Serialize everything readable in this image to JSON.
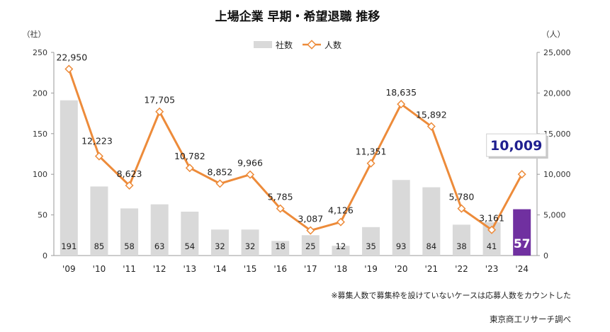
{
  "chart_data": {
    "type": "bar+line",
    "title": "上場企業 早期・希望退職 推移",
    "categories": [
      "'09",
      "'10",
      "'11",
      "'12",
      "'13",
      "'14",
      "'15",
      "'16",
      "'17",
      "'18",
      "'19",
      "'20",
      "'21",
      "'22",
      "'23",
      "'24"
    ],
    "y_left": {
      "unit": "（社）",
      "ylim": [
        0,
        250
      ],
      "ticks": [
        "0",
        "50",
        "100",
        "150",
        "200",
        "250"
      ]
    },
    "y_right": {
      "unit": "（人）",
      "ylim": [
        0,
        25000
      ],
      "ticks": [
        "0",
        "5,000",
        "10,000",
        "15,000",
        "20,000",
        "25,000"
      ]
    },
    "legend": {
      "placement": "top-center",
      "bar_name": "社数",
      "line_name": "人数"
    },
    "series": [
      {
        "name": "社数",
        "kind": "bar",
        "axis": "left",
        "values": [
          191,
          85,
          58,
          63,
          54,
          32,
          32,
          18,
          25,
          12,
          35,
          93,
          84,
          38,
          41,
          57
        ],
        "labels": [
          "191",
          "85",
          "58",
          "63",
          "54",
          "32",
          "32",
          "18",
          "25",
          "12",
          "35",
          "93",
          "84",
          "38",
          "41",
          "57"
        ],
        "color": "#d9d9d9",
        "highlight_color": "#7030a0",
        "highlight_index": 15
      },
      {
        "name": "人数",
        "kind": "line",
        "axis": "right",
        "values": [
          22950,
          12223,
          8623,
          17705,
          10782,
          8852,
          9966,
          5785,
          3087,
          4126,
          11351,
          18635,
          15892,
          5780,
          3161,
          10009
        ],
        "labels": [
          "22,950",
          "12,223",
          "8,623",
          "17,705",
          "10,782",
          "8,852",
          "9,966",
          "5,785",
          "3,087",
          "4,126",
          "11,351",
          "18,635",
          "15,892",
          "5,780",
          "3,161",
          "10,009"
        ],
        "color": "#ed8b3a",
        "highlight_index": 15
      }
    ],
    "grid": false
  },
  "note": "※募集人数で募集枠を設けていないケースは応募人数をカウントした",
  "source": "東京商工リサーチ調べ"
}
